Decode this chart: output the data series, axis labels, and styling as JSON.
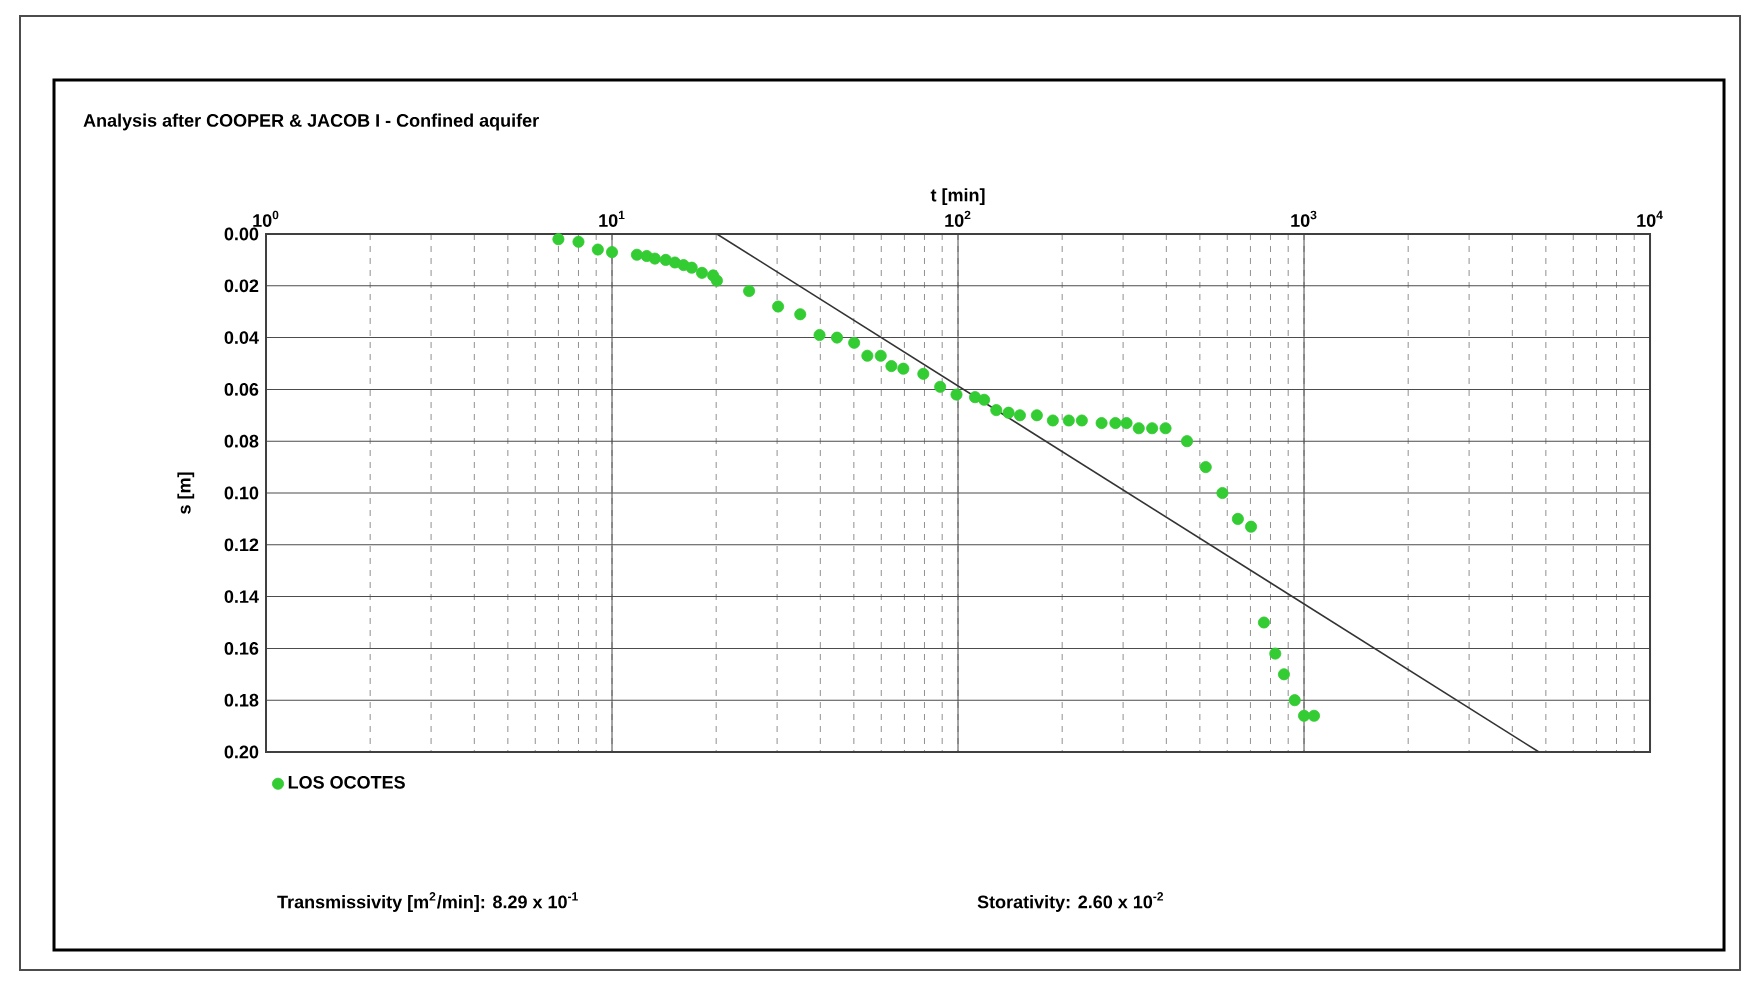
{
  "chart_data": {
    "type": "scatter",
    "title": "Analysis after COOPER & JACOB I - Confined aquifer",
    "xlabel": "t [min]",
    "ylabel": "s [m]",
    "log": "x",
    "grid": true,
    "legend": "bottom left",
    "xlim": [
      1,
      10000
    ],
    "xticks": [
      {
        "value": 1,
        "label": "10$^{0}$"
      },
      {
        "value": 10,
        "label": "10$^{1}$"
      },
      {
        "value": 100,
        "label": "10$^{2}$"
      },
      {
        "value": 1000,
        "label": "10$^{3}$"
      },
      {
        "value": 10000,
        "label": "10$^{4}$"
      }
    ],
    "ylim": [
      0.2,
      0
    ],
    "yticks": [
      {
        "value": 0,
        "label": "0.00"
      },
      {
        "value": 0.02,
        "label": "0.02"
      },
      {
        "value": 0.04,
        "label": "0.04"
      },
      {
        "value": 0.06,
        "label": "0.06"
      },
      {
        "value": 0.08,
        "label": "0.08"
      },
      {
        "value": 0.1,
        "label": "0.10"
      },
      {
        "value": 0.12,
        "label": "0.12"
      },
      {
        "value": 0.14,
        "label": "0.14"
      },
      {
        "value": 0.16,
        "label": "0.16"
      },
      {
        "value": 0.18,
        "label": "0.18"
      },
      {
        "value": 0.2,
        "label": "0.20"
      }
    ],
    "series": [
      {
        "name": "LOS OCOTES",
        "marker": "circle",
        "color": "#33cc33",
        "x": [
          7.0,
          8.0,
          9.1,
          10,
          11.8,
          12.6,
          13.3,
          14.3,
          15.2,
          16.1,
          17.0,
          18.2,
          19.6,
          20.1,
          24.9,
          30.2,
          35,
          39.8,
          44.7,
          50.1,
          54.7,
          59.8,
          64.2,
          69.5,
          79.4,
          88.8,
          99,
          112,
          119,
          129,
          140,
          151,
          169,
          188,
          209,
          228,
          260,
          285,
          307,
          333,
          364,
          398,
          459,
          520,
          581,
          644,
          703,
          766,
          826,
          875,
          940,
          1000,
          1069
        ],
        "values": [
          0.002,
          0.003,
          0.006,
          0.007,
          0.008,
          0.0085,
          0.0095,
          0.01,
          0.011,
          0.012,
          0.013,
          0.015,
          0.016,
          0.018,
          0.022,
          0.028,
          0.031,
          0.039,
          0.04,
          0.042,
          0.047,
          0.047,
          0.051,
          0.052,
          0.054,
          0.059,
          0.062,
          0.063,
          0.064,
          0.068,
          0.069,
          0.07,
          0.07,
          0.072,
          0.072,
          0.072,
          0.073,
          0.073,
          0.073,
          0.075,
          0.075,
          0.075,
          0.08,
          0.09,
          0.1,
          0.11,
          0.113,
          0.15,
          0.162,
          0.17,
          0.18,
          0.186,
          0.186
        ]
      },
      {
        "type": "line",
        "marker": "none",
        "color": "#333333",
        "x": [
          20.1,
          4775
        ],
        "values": [
          0,
          0.2
        ]
      }
    ],
    "annotations": [
      "Transmissivity [m$^{2}$/min]:  8.29 x 10$^{-1}$",
      "Storativity: 2.60 x 10$^{-2}$"
    ]
  }
}
